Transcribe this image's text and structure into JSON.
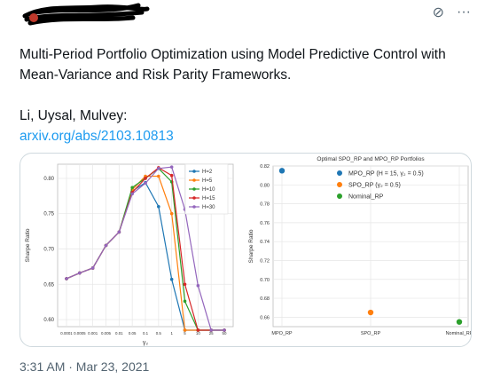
{
  "tweet": {
    "text_line1": "Multi-Period Portfolio Optimization using Model Predictive Control with",
    "text_line2": "Mean-Variance and Risk Parity Frameworks.",
    "authors": "Li, Uysal, Mulvey:",
    "link_text": "arxiv.org/abs/2103.10813",
    "timestamp": "3:31 AM · Mar 23, 2021"
  },
  "icons": {
    "mute": "mute-icon",
    "more": "more-icon"
  },
  "colors": {
    "link": "#1d9bf0",
    "text": "#0f1419",
    "muted": "#536471",
    "blue": "#1f77b4",
    "orange": "#ff7f0e",
    "green": "#2ca02c",
    "red": "#d62728",
    "purple": "#9467bd"
  },
  "chart_data": [
    {
      "type": "line",
      "title": "",
      "xlabel": "γ₂",
      "ylabel": "Sharpe Ratio",
      "x": [
        "0.0001",
        "0.0005",
        "0.001",
        "0.005",
        "0.01",
        "0.05",
        "0.1",
        "0.5",
        "1",
        "5",
        "10",
        "25",
        "50"
      ],
      "ylim": [
        0.59,
        0.82
      ],
      "yticks": [
        "0.60",
        "0.65",
        "0.70",
        "0.75",
        "0.80"
      ],
      "legend": "top-right",
      "grid": true,
      "series": [
        {
          "name": "H=2",
          "values": [
            0.658,
            0.666,
            0.673,
            0.705,
            0.724,
            0.782,
            0.794,
            0.76,
            0.657,
            0.585,
            0.585,
            0.585,
            0.585
          ]
        },
        {
          "name": "H=5",
          "values": [
            0.658,
            0.666,
            0.673,
            0.705,
            0.724,
            0.784,
            0.803,
            0.803,
            0.75,
            0.585,
            0.585,
            0.585,
            0.585
          ]
        },
        {
          "name": "H=10",
          "values": [
            0.658,
            0.666,
            0.673,
            0.705,
            0.724,
            0.787,
            0.8,
            0.814,
            0.795,
            0.626,
            0.585,
            0.585,
            0.585
          ]
        },
        {
          "name": "H=15",
          "values": [
            0.658,
            0.666,
            0.673,
            0.705,
            0.724,
            0.78,
            0.8,
            0.815,
            0.804,
            0.65,
            0.585,
            0.585,
            0.585
          ]
        },
        {
          "name": "H=30",
          "values": [
            0.658,
            0.666,
            0.673,
            0.705,
            0.724,
            0.778,
            0.793,
            0.814,
            0.816,
            0.756,
            0.648,
            0.585,
            0.585
          ]
        }
      ]
    },
    {
      "type": "scatter",
      "title": "Optimal SPO_RP and MPO_RP Portfolios",
      "xlabel": "",
      "ylabel": "Sharpe Ratio",
      "categories": [
        "MPO_RP",
        "SPO_RP",
        "Nominal_RP"
      ],
      "ylim": [
        0.65,
        0.82
      ],
      "yticks": [
        "0.66",
        "0.68",
        "0.70",
        "0.72",
        "0.74",
        "0.76",
        "0.78",
        "0.80",
        "0.82"
      ],
      "legend": "top-right",
      "grid": true,
      "series": [
        {
          "name": "MPO_RP (H = 15, γ₂ = 0.5)",
          "x": "MPO_RP",
          "value": 0.815
        },
        {
          "name": "SPO_RP (γ₂ = 0.5)",
          "x": "SPO_RP",
          "value": 0.665
        },
        {
          "name": "Nominal_RP",
          "x": "Nominal_RP",
          "value": 0.655
        }
      ]
    }
  ]
}
